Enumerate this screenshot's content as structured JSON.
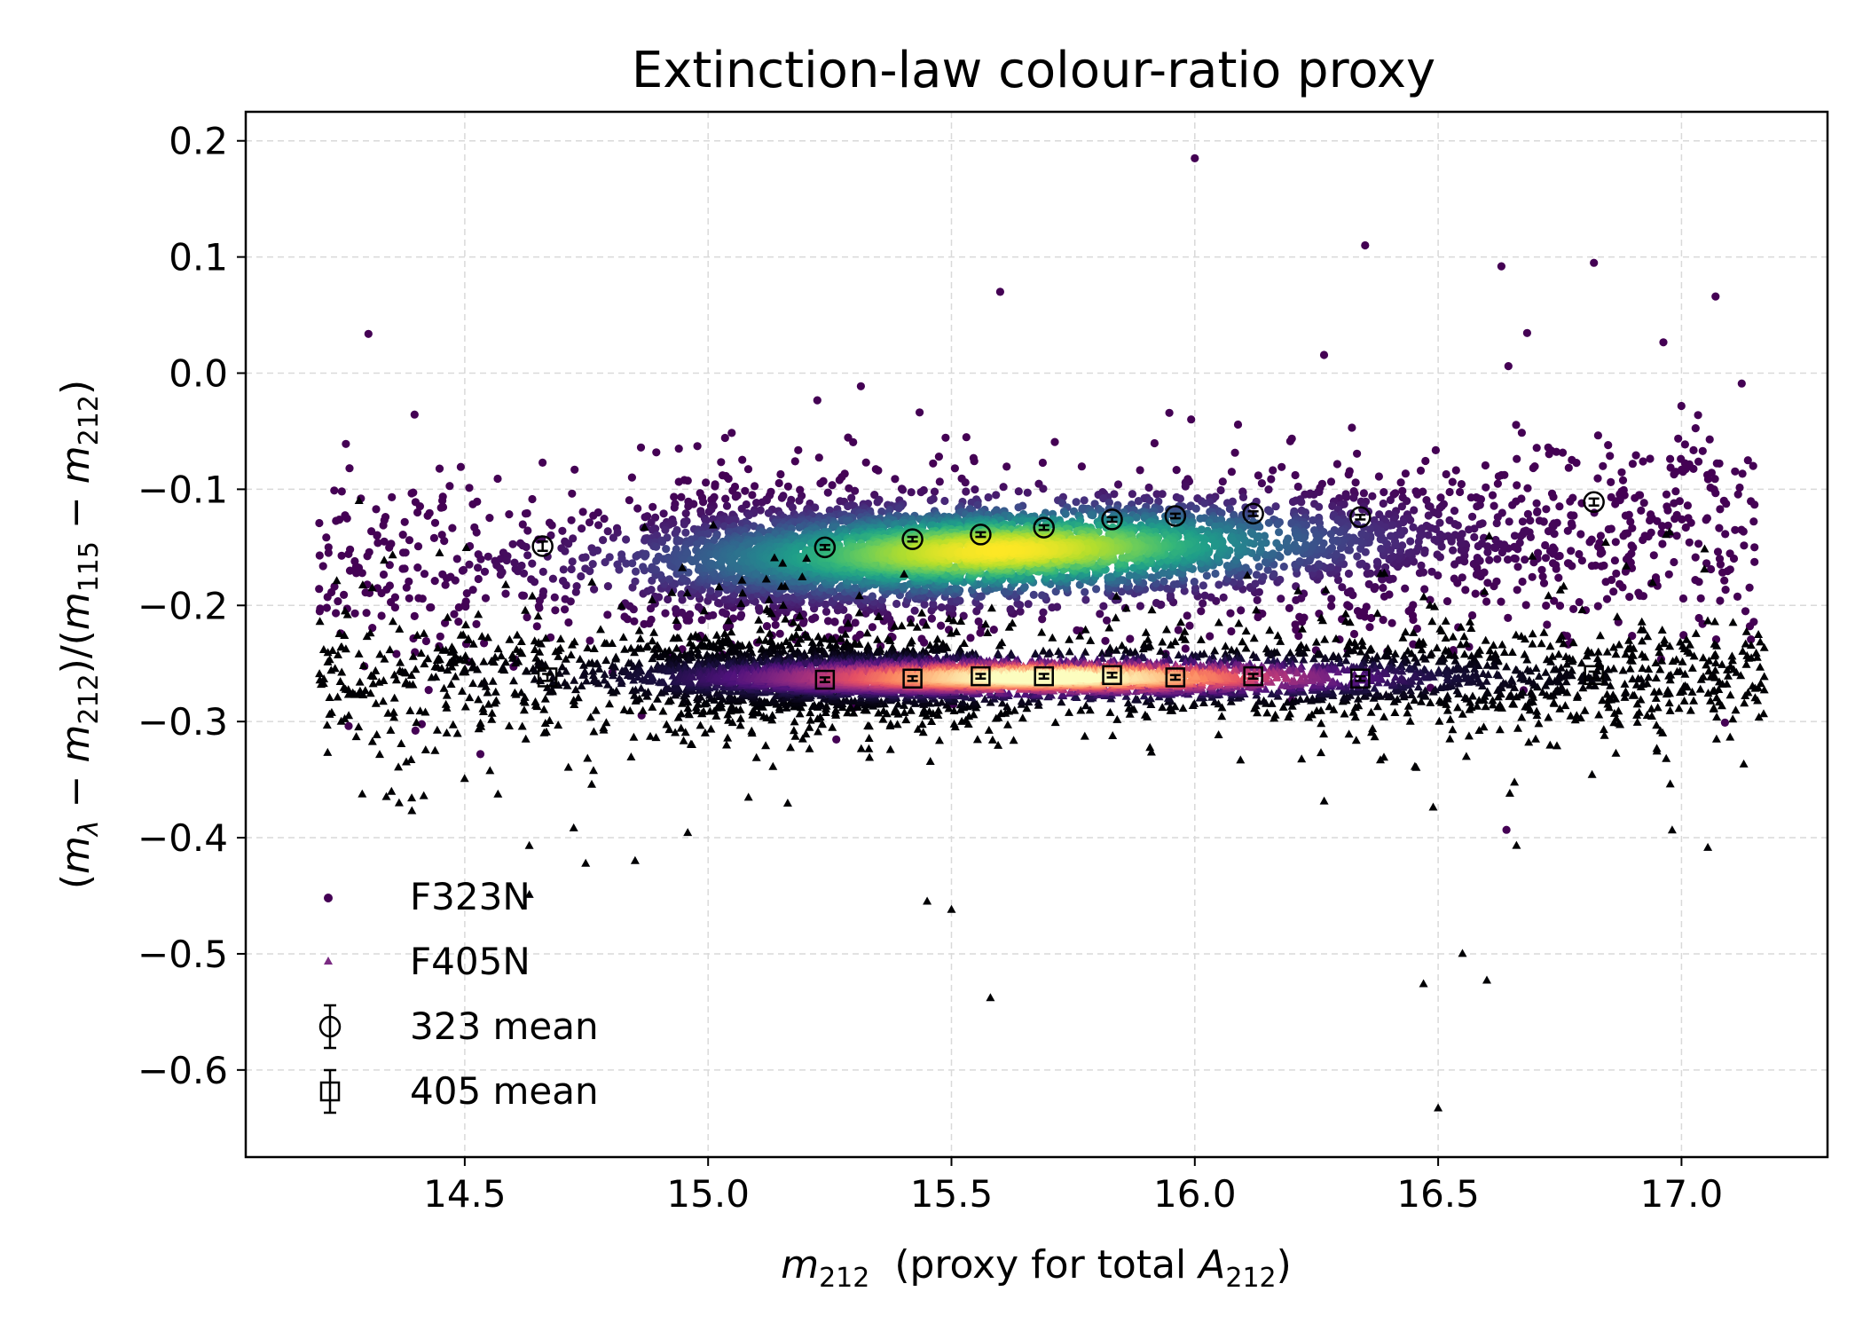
{
  "chart_data": {
    "type": "scatter",
    "title": "Extinction-law colour-ratio proxy",
    "xlabel": {
      "prefix": "m",
      "sub": "212",
      "mid": "  (proxy for total ",
      "italic2": "A",
      "sub2": "212",
      "suffix": ")"
    },
    "ylabel": {
      "text": "(m_λ − m_212)/(m_115 − m_212)"
    },
    "xlim": [
      14.05,
      17.3
    ],
    "ylim": [
      -0.675,
      0.225
    ],
    "x_ticks": [
      14.5,
      15.0,
      15.5,
      16.0,
      16.5,
      17.0
    ],
    "x_tick_labels": [
      "14.5",
      "15.0",
      "15.5",
      "16.0",
      "16.5",
      "17.0"
    ],
    "y_ticks": [
      0.2,
      0.1,
      0.0,
      -0.1,
      -0.2,
      -0.3,
      -0.4,
      -0.5,
      -0.6
    ],
    "y_tick_labels": [
      "0.2",
      "0.1",
      "0.0",
      "−0.1",
      "−0.2",
      "−0.3",
      "−0.4",
      "−0.5",
      "−0.6"
    ],
    "grid": true,
    "legend_position": "lower-left",
    "series": [
      {
        "name": "F323N",
        "kind": "density-scatter",
        "marker": "circle",
        "colormap": "viridis",
        "approx_x_range": [
          14.2,
          17.15
        ],
        "approx_center": -0.15,
        "outliers": [
          [
            16.0,
            0.185
          ],
          [
            16.35,
            0.11
          ],
          [
            16.82,
            0.095
          ],
          [
            17.07,
            0.066
          ],
          [
            15.6,
            0.07
          ],
          [
            16.63,
            0.092
          ],
          [
            14.22,
            -0.15
          ],
          [
            17.15,
            -0.15
          ]
        ]
      },
      {
        "name": "F405N",
        "kind": "density-scatter",
        "marker": "triangle",
        "colormap": "magma",
        "approx_x_range": [
          14.2,
          17.17
        ],
        "approx_center": -0.262,
        "outliers": [
          [
            16.5,
            -0.633
          ],
          [
            15.58,
            -0.538
          ],
          [
            16.47,
            -0.526
          ],
          [
            16.6,
            -0.523
          ],
          [
            16.55,
            -0.5
          ],
          [
            15.5,
            -0.462
          ],
          [
            15.45,
            -0.455
          ],
          [
            14.85,
            -0.42
          ],
          [
            14.38,
            -0.335
          ]
        ]
      },
      {
        "name": "323 mean",
        "kind": "binned-mean",
        "marker": "open-circle",
        "x": [
          14.66,
          15.24,
          15.42,
          15.56,
          15.69,
          15.83,
          15.96,
          16.12,
          16.34,
          16.82
        ],
        "y": [
          -0.149,
          -0.15,
          -0.143,
          -0.139,
          -0.133,
          -0.126,
          -0.123,
          -0.121,
          -0.124,
          -0.111
        ],
        "yerr": [
          0.004,
          0.002,
          0.002,
          0.002,
          0.002,
          0.002,
          0.002,
          0.002,
          0.002,
          0.003
        ]
      },
      {
        "name": "405 mean",
        "kind": "binned-mean",
        "marker": "open-square",
        "x": [
          14.67,
          15.24,
          15.42,
          15.56,
          15.69,
          15.83,
          15.96,
          16.12,
          16.34,
          16.82
        ],
        "y": [
          -0.262,
          -0.264,
          -0.263,
          -0.261,
          -0.261,
          -0.26,
          -0.262,
          -0.261,
          -0.263,
          -0.26
        ],
        "yerr": [
          0.003,
          0.002,
          0.002,
          0.002,
          0.002,
          0.002,
          0.002,
          0.002,
          0.002,
          0.003
        ]
      }
    ],
    "colors": {
      "axis": "#000000",
      "grid": "#d9d9d9",
      "mean_marker": "#000000"
    }
  }
}
